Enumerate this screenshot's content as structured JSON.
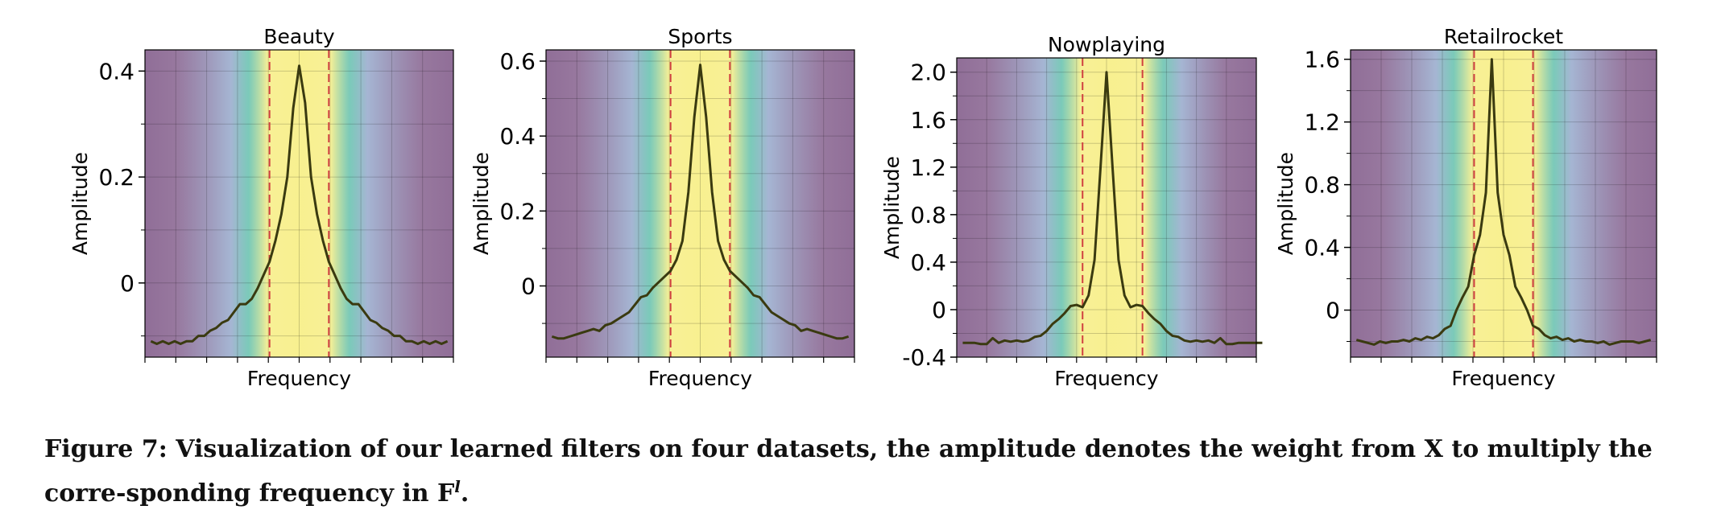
{
  "chart_data": [
    {
      "type": "line",
      "title": "Beauty",
      "xlabel": "Frequency",
      "ylabel": "Amplitude",
      "x": [
        0,
        1,
        2,
        3,
        4,
        5,
        6,
        7,
        8,
        9,
        10,
        11,
        12,
        13,
        14,
        15,
        16,
        17,
        18,
        19,
        20,
        21,
        22,
        23,
        24,
        25,
        26,
        27,
        28,
        29,
        30,
        31,
        32,
        33,
        34,
        35,
        36,
        37,
        38,
        39,
        40,
        41,
        42,
        43,
        44,
        45,
        46,
        47,
        48,
        49,
        50
      ],
      "y": [
        -0.11,
        -0.115,
        -0.11,
        -0.115,
        -0.11,
        -0.115,
        -0.11,
        -0.11,
        -0.1,
        -0.1,
        -0.09,
        -0.085,
        -0.075,
        -0.07,
        -0.055,
        -0.04,
        -0.04,
        -0.03,
        -0.01,
        0.015,
        0.04,
        0.08,
        0.13,
        0.2,
        0.33,
        0.41,
        0.34,
        0.2,
        0.13,
        0.08,
        0.04,
        0.015,
        -0.01,
        -0.03,
        -0.04,
        -0.04,
        -0.055,
        -0.07,
        -0.075,
        -0.085,
        -0.09,
        -0.1,
        -0.1,
        -0.11,
        -0.11,
        -0.115,
        -0.11,
        -0.115,
        -0.11,
        -0.115,
        -0.11
      ],
      "xlim": [
        -1,
        51
      ],
      "ylim": [
        -0.14,
        0.44
      ],
      "yticks": [
        0,
        0.2,
        0.4
      ],
      "ytick_labels": [
        "0",
        "0.2",
        "0.4"
      ],
      "minor_yticks": [
        -0.1,
        0.1,
        0.3
      ],
      "band": [
        20,
        30
      ],
      "grid": true
    },
    {
      "type": "line",
      "title": "Sports",
      "xlabel": "Frequency",
      "ylabel": "Amplitude",
      "x": [
        0,
        1,
        2,
        3,
        4,
        5,
        6,
        7,
        8,
        9,
        10,
        11,
        12,
        13,
        14,
        15,
        16,
        17,
        18,
        19,
        20,
        21,
        22,
        23,
        24,
        25,
        26,
        27,
        28,
        29,
        30,
        31,
        32,
        33,
        34,
        35,
        36,
        37,
        38,
        39,
        40,
        41,
        42,
        43,
        44,
        45,
        46,
        47,
        48,
        49,
        50
      ],
      "y": [
        -0.135,
        -0.14,
        -0.14,
        -0.135,
        -0.13,
        -0.125,
        -0.12,
        -0.115,
        -0.12,
        -0.105,
        -0.1,
        -0.09,
        -0.08,
        -0.07,
        -0.05,
        -0.03,
        -0.025,
        -0.005,
        0.01,
        0.025,
        0.04,
        0.07,
        0.12,
        0.25,
        0.45,
        0.59,
        0.45,
        0.25,
        0.12,
        0.07,
        0.04,
        0.025,
        0.01,
        -0.005,
        -0.025,
        -0.03,
        -0.05,
        -0.07,
        -0.08,
        -0.09,
        -0.1,
        -0.105,
        -0.12,
        -0.115,
        -0.12,
        -0.125,
        -0.13,
        -0.135,
        -0.14,
        -0.14,
        -0.135
      ],
      "xlim": [
        -1,
        51
      ],
      "ylim": [
        -0.19,
        0.63
      ],
      "yticks": [
        0,
        0.2,
        0.4,
        0.6
      ],
      "ytick_labels": [
        "0",
        "0.2",
        "0.4",
        "0.6"
      ],
      "minor_yticks": [
        -0.1,
        0.1,
        0.3,
        0.5
      ],
      "band": [
        20,
        30
      ],
      "grid": true
    },
    {
      "type": "line",
      "title": "Nowplaying",
      "xlabel": "Frequency",
      "ylabel": "Amplitude",
      "x": [
        0,
        1,
        2,
        3,
        4,
        5,
        6,
        7,
        8,
        9,
        10,
        11,
        12,
        13,
        14,
        15,
        16,
        17,
        18,
        19,
        20,
        21,
        22,
        23,
        24,
        25,
        26,
        27,
        28,
        29,
        30,
        31,
        32,
        33,
        34,
        35,
        36,
        37,
        38,
        39,
        40,
        41,
        42,
        43,
        44,
        45,
        46,
        47,
        48,
        49,
        50
      ],
      "y": [
        -0.28,
        -0.28,
        -0.28,
        -0.29,
        -0.29,
        -0.24,
        -0.28,
        -0.26,
        -0.27,
        -0.26,
        -0.27,
        -0.26,
        -0.23,
        -0.22,
        -0.18,
        -0.12,
        -0.08,
        -0.03,
        0.03,
        0.04,
        0.02,
        0.12,
        0.42,
        1.2,
        2.0,
        1.2,
        0.42,
        0.12,
        0.02,
        0.04,
        0.03,
        -0.03,
        -0.08,
        -0.12,
        -0.18,
        -0.22,
        -0.23,
        -0.26,
        -0.27,
        -0.26,
        -0.27,
        -0.26,
        -0.28,
        -0.24,
        -0.29,
        -0.29,
        -0.28,
        -0.28,
        -0.28,
        -0.28,
        -0.28
      ],
      "xlim": [
        -1,
        49
      ],
      "ylim": [
        -0.4,
        2.12
      ],
      "yticks": [
        -0.4,
        0,
        0.4,
        0.8,
        1.2,
        1.6,
        2.0
      ],
      "ytick_labels": [
        "-0.4",
        "0",
        "0.4",
        "0.8",
        "1.2",
        "1.6",
        "2.0"
      ],
      "minor_yticks": [
        -0.2,
        0.2,
        0.6,
        1.0,
        1.4,
        1.8
      ],
      "band": [
        20,
        30
      ],
      "grid": true
    },
    {
      "type": "line",
      "title": "Retailrocket",
      "xlabel": "Frequency",
      "ylabel": "Amplitude",
      "x": [
        0,
        1,
        2,
        3,
        4,
        5,
        6,
        7,
        8,
        9,
        10,
        11,
        12,
        13,
        14,
        15,
        16,
        17,
        18,
        19,
        20,
        21,
        22,
        23,
        24,
        25,
        26,
        27,
        28,
        29,
        30,
        31,
        32,
        33,
        34,
        35,
        36,
        37,
        38,
        39,
        40,
        41,
        42,
        43,
        44,
        45,
        46,
        47,
        48,
        49,
        50
      ],
      "y": [
        -0.19,
        -0.2,
        -0.21,
        -0.22,
        -0.2,
        -0.21,
        -0.2,
        -0.2,
        -0.19,
        -0.2,
        -0.18,
        -0.19,
        -0.17,
        -0.18,
        -0.16,
        -0.12,
        -0.1,
        0.0,
        0.08,
        0.15,
        0.35,
        0.48,
        0.75,
        1.6,
        0.75,
        0.48,
        0.35,
        0.15,
        0.08,
        0.0,
        -0.1,
        -0.12,
        -0.16,
        -0.18,
        -0.17,
        -0.19,
        -0.18,
        -0.2,
        -0.19,
        -0.2,
        -0.2,
        -0.21,
        -0.2,
        -0.22,
        -0.21,
        -0.2,
        -0.2,
        -0.2,
        -0.21,
        -0.2,
        -0.19
      ],
      "xlim": [
        -1,
        51
      ],
      "ylim": [
        -0.3,
        1.66
      ],
      "yticks": [
        0,
        0.4,
        0.8,
        1.2,
        1.6
      ],
      "ytick_labels": [
        "0",
        "0.4",
        "0.8",
        "1.2",
        "1.6"
      ],
      "minor_yticks": [
        -0.2,
        0.2,
        0.6,
        1.0,
        1.4
      ],
      "band": [
        20,
        30
      ],
      "grid": true
    }
  ],
  "caption": {
    "main": "Figure 7: Visualization of our learned filters on four datasets, the amplitude denotes the weight from X to multiply the corre-sponding frequency in F",
    "superscript": "l",
    "end": "."
  },
  "colors": {
    "line": "#3a3a10",
    "band_line": "#d04040",
    "edge": "#6b3e75",
    "mid": "#4fb8a2",
    "center": "#f7ef8a"
  }
}
